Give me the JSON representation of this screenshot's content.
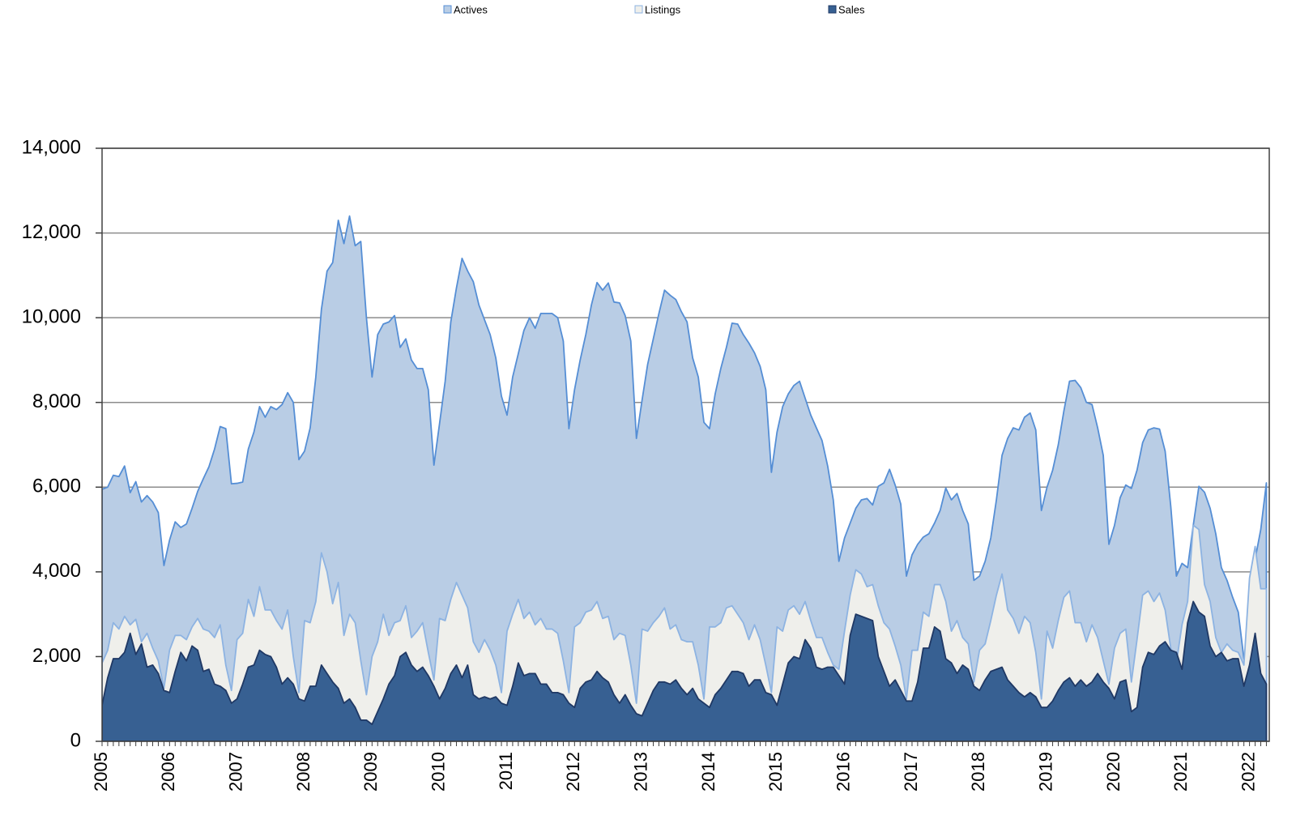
{
  "chart_data": {
    "type": "area",
    "categories": [
      "2005",
      null,
      null,
      null,
      null,
      null,
      null,
      null,
      null,
      null,
      null,
      null,
      "2006",
      null,
      null,
      null,
      null,
      null,
      null,
      null,
      null,
      null,
      null,
      null,
      "2007",
      null,
      null,
      null,
      null,
      null,
      null,
      null,
      null,
      null,
      null,
      null,
      "2008",
      null,
      null,
      null,
      null,
      null,
      null,
      null,
      null,
      null,
      null,
      null,
      "2009",
      null,
      null,
      null,
      null,
      null,
      null,
      null,
      null,
      null,
      null,
      null,
      "2010",
      null,
      null,
      null,
      null,
      null,
      null,
      null,
      null,
      null,
      null,
      null,
      "2011",
      null,
      null,
      null,
      null,
      null,
      null,
      null,
      null,
      null,
      null,
      null,
      "2012",
      null,
      null,
      null,
      null,
      null,
      null,
      null,
      null,
      null,
      null,
      null,
      "2013",
      null,
      null,
      null,
      null,
      null,
      null,
      null,
      null,
      null,
      null,
      null,
      "2014",
      null,
      null,
      null,
      null,
      null,
      null,
      null,
      null,
      null,
      null,
      null,
      "2015",
      null,
      null,
      null,
      null,
      null,
      null,
      null,
      null,
      null,
      null,
      null,
      "2016",
      null,
      null,
      null,
      null,
      null,
      null,
      null,
      null,
      null,
      null,
      null,
      "2017",
      null,
      null,
      null,
      null,
      null,
      null,
      null,
      null,
      null,
      null,
      null,
      "2018",
      null,
      null,
      null,
      null,
      null,
      null,
      null,
      null,
      null,
      null,
      null,
      "2019",
      null,
      null,
      null,
      null,
      null,
      null,
      null,
      null,
      null,
      null,
      null,
      "2020",
      null,
      null,
      null,
      null,
      null,
      null,
      null,
      null,
      null,
      null,
      null,
      "2021",
      null,
      null,
      null,
      null,
      null,
      null,
      null,
      null,
      null,
      null,
      null,
      "2022",
      null,
      null,
      null
    ],
    "series": [
      {
        "name": "Actives",
        "color": "#b9cde5",
        "line_color": "#558ed5",
        "values": [
          5950,
          6000,
          6280,
          6250,
          6500,
          5870,
          6130,
          5650,
          5800,
          5650,
          5400,
          4150,
          4750,
          5180,
          5050,
          5130,
          5500,
          5900,
          6200,
          6480,
          6900,
          7430,
          7380,
          6080,
          6090,
          6120,
          6900,
          7300,
          7900,
          7650,
          7900,
          7830,
          7950,
          8230,
          8000,
          6650,
          6850,
          7400,
          8600,
          10200,
          11100,
          11300,
          12300,
          11750,
          12400,
          11700,
          11800,
          10000,
          8600,
          9600,
          9850,
          9900,
          10050,
          9300,
          9500,
          9000,
          8800,
          8800,
          8300,
          6520,
          7500,
          8500,
          9900,
          10700,
          11400,
          11100,
          10850,
          10300,
          9950,
          9600,
          9050,
          8150,
          7700,
          8600,
          9150,
          9700,
          10000,
          9750,
          10100,
          10100,
          10100,
          10000,
          9450,
          7380,
          8300,
          9000,
          9600,
          10300,
          10830,
          10650,
          10820,
          10370,
          10350,
          10050,
          9450,
          7150,
          8050,
          8900,
          9500,
          10100,
          10650,
          10530,
          10430,
          10140,
          9900,
          9050,
          8600,
          7530,
          7380,
          8200,
          8800,
          9300,
          9870,
          9850,
          9600,
          9400,
          9170,
          8850,
          8300,
          6350,
          7300,
          7900,
          8200,
          8400,
          8500,
          8100,
          7700,
          7400,
          7100,
          6500,
          5700,
          4250,
          4800,
          5150,
          5500,
          5700,
          5730,
          5580,
          6020,
          6100,
          6420,
          6050,
          5600,
          3900,
          4400,
          4650,
          4820,
          4900,
          5150,
          5450,
          5980,
          5700,
          5850,
          5450,
          5130,
          3800,
          3900,
          4250,
          4800,
          5700,
          6750,
          7150,
          7400,
          7350,
          7650,
          7750,
          7350,
          5450,
          6000,
          6400,
          7000,
          7800,
          8500,
          8520,
          8350,
          8000,
          7950,
          7400,
          6750,
          4650,
          5100,
          5750,
          6050,
          5970,
          6400,
          7050,
          7350,
          7400,
          7370,
          6850,
          5550,
          3900,
          4200,
          4100,
          5100,
          6020,
          5880,
          5500,
          4900,
          4100,
          3800,
          3400,
          3050,
          1950,
          2400,
          4300,
          5000,
          6100
        ]
      },
      {
        "name": "Listings",
        "color": "#efefeb",
        "line_color": "#8db3e2",
        "values": [
          1850,
          2150,
          2800,
          2650,
          2950,
          2750,
          2880,
          2350,
          2550,
          2200,
          1900,
          1250,
          2150,
          2500,
          2500,
          2400,
          2700,
          2900,
          2650,
          2600,
          2450,
          2750,
          1800,
          1200,
          2400,
          2550,
          3350,
          2950,
          3650,
          3100,
          3100,
          2850,
          2650,
          3100,
          2000,
          1150,
          2850,
          2800,
          3300,
          4450,
          4000,
          3250,
          3750,
          2500,
          3000,
          2800,
          1900,
          1100,
          2000,
          2350,
          3000,
          2500,
          2800,
          2850,
          3200,
          2450,
          2600,
          2800,
          2100,
          1450,
          2900,
          2850,
          3350,
          3750,
          3450,
          3150,
          2350,
          2100,
          2400,
          2150,
          1800,
          1150,
          2600,
          3000,
          3350,
          2900,
          3050,
          2750,
          2900,
          2650,
          2650,
          2550,
          1900,
          1150,
          2700,
          2800,
          3050,
          3100,
          3300,
          2900,
          2950,
          2400,
          2550,
          2500,
          1800,
          900,
          2650,
          2600,
          2800,
          2950,
          3150,
          2650,
          2750,
          2400,
          2350,
          2350,
          1800,
          1000,
          2700,
          2700,
          2800,
          3150,
          3200,
          3000,
          2800,
          2400,
          2750,
          2400,
          1800,
          1150,
          2700,
          2600,
          3100,
          3200,
          3000,
          3300,
          2850,
          2450,
          2450,
          2100,
          1800,
          1700,
          2600,
          3450,
          4050,
          3950,
          3650,
          3700,
          3200,
          2800,
          2650,
          2250,
          1800,
          1000,
          2150,
          2150,
          3050,
          2950,
          3700,
          3700,
          3300,
          2600,
          2850,
          2450,
          2300,
          1400,
          2150,
          2300,
          2850,
          3450,
          3950,
          3100,
          2900,
          2550,
          2950,
          2800,
          2100,
          1000,
          2600,
          2200,
          2850,
          3400,
          3550,
          2800,
          2800,
          2350,
          2750,
          2450,
          1900,
          1350,
          2200,
          2550,
          2650,
          1400,
          2400,
          3450,
          3550,
          3300,
          3500,
          3100,
          2200,
          1850,
          2750,
          3300,
          5100,
          5000,
          3700,
          3300,
          2450,
          2100,
          2300,
          2150,
          2100,
          1800,
          3850,
          4600,
          3600,
          3600
        ]
      },
      {
        "name": "Sales",
        "color": "#376092",
        "line_color": "#1f3864",
        "values": [
          850,
          1500,
          1950,
          1950,
          2100,
          2550,
          2050,
          2300,
          1750,
          1800,
          1600,
          1200,
          1150,
          1650,
          2100,
          1900,
          2250,
          2150,
          1650,
          1700,
          1350,
          1300,
          1200,
          900,
          1000,
          1350,
          1750,
          1800,
          2150,
          2050,
          2000,
          1750,
          1350,
          1500,
          1350,
          1000,
          950,
          1300,
          1300,
          1800,
          1600,
          1400,
          1250,
          900,
          1000,
          800,
          500,
          500,
          400,
          700,
          1000,
          1350,
          1550,
          2000,
          2100,
          1800,
          1650,
          1750,
          1550,
          1300,
          1000,
          1250,
          1600,
          1800,
          1500,
          1800,
          1100,
          1000,
          1050,
          1000,
          1050,
          900,
          850,
          1300,
          1850,
          1550,
          1600,
          1600,
          1350,
          1350,
          1150,
          1150,
          1100,
          900,
          800,
          1250,
          1400,
          1450,
          1650,
          1500,
          1400,
          1100,
          900,
          1100,
          850,
          650,
          600,
          900,
          1200,
          1400,
          1400,
          1350,
          1450,
          1250,
          1100,
          1250,
          1000,
          900,
          800,
          1100,
          1250,
          1450,
          1650,
          1650,
          1600,
          1300,
          1450,
          1450,
          1150,
          1100,
          850,
          1350,
          1850,
          2000,
          1950,
          2400,
          2200,
          1750,
          1700,
          1750,
          1750,
          1550,
          1350,
          2500,
          3000,
          2950,
          2900,
          2850,
          2000,
          1650,
          1300,
          1450,
          1200,
          950,
          950,
          1400,
          2200,
          2200,
          2700,
          2600,
          1950,
          1850,
          1600,
          1800,
          1700,
          1300,
          1200,
          1450,
          1650,
          1700,
          1750,
          1450,
          1300,
          1150,
          1050,
          1150,
          1050,
          800,
          800,
          950,
          1200,
          1400,
          1500,
          1300,
          1450,
          1300,
          1400,
          1600,
          1400,
          1250,
          1000,
          1400,
          1450,
          700,
          800,
          1750,
          2100,
          2050,
          2250,
          2350,
          2150,
          2100,
          1700,
          2800,
          3300,
          3050,
          2950,
          2250,
          2000,
          2100,
          1900,
          1950,
          1950,
          1300,
          1800,
          2550,
          1600,
          1350
        ]
      }
    ],
    "ylim": [
      0,
      14000
    ],
    "yticks": [
      0,
      {
        "value": 2000,
        "label": "2,000"
      },
      {
        "value": 4000,
        "label": "4,000"
      },
      {
        "value": 6000,
        "label": "6,000"
      },
      {
        "value": 8000,
        "label": "8,000"
      },
      {
        "value": 10000,
        "label": "10,000"
      },
      {
        "value": 12000,
        "label": "12,000"
      },
      {
        "value": 14000,
        "label": "14,000"
      }
    ],
    "grid": true,
    "legend": "top"
  }
}
